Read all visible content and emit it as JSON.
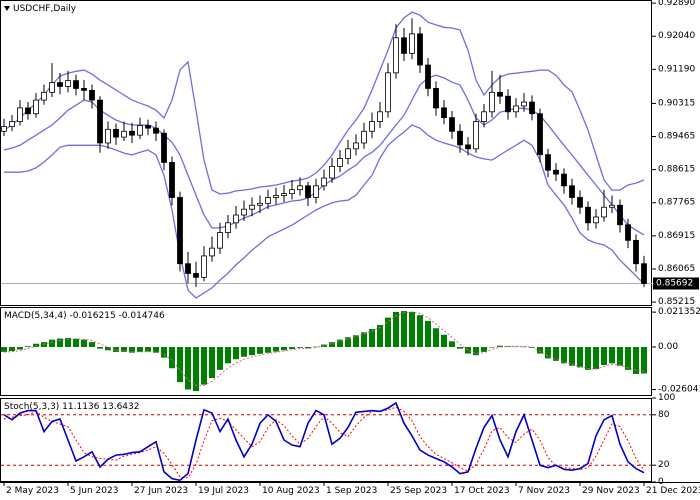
{
  "chart_data": [
    {
      "type": "candlestick",
      "title": "USDCHF,Daily",
      "categories": [
        "2 May 2023",
        null,
        null,
        null,
        null,
        null,
        null,
        null,
        "5 Jun 2023",
        null,
        null,
        null,
        null,
        null,
        null,
        null,
        "27 Jun 2023",
        null,
        null,
        null,
        null,
        null,
        null,
        null,
        "19 Jul 2023",
        null,
        null,
        null,
        null,
        null,
        null,
        null,
        "10 Aug 2023",
        null,
        null,
        null,
        null,
        null,
        null,
        null,
        "1 Sep 2023",
        null,
        null,
        null,
        null,
        null,
        null,
        null,
        "25 Sep 2023",
        null,
        null,
        null,
        null,
        null,
        null,
        null,
        "17 Oct 2023",
        null,
        null,
        null,
        null,
        null,
        null,
        null,
        "7 Nov 2023",
        null,
        null,
        null,
        null,
        null,
        null,
        null,
        "29 Nov 2023",
        null,
        null,
        null,
        null,
        null,
        null,
        null,
        "21 Dec 2023"
      ],
      "open": [
        0.896,
        0.8972,
        0.8985,
        0.902,
        0.9005,
        0.904,
        0.906,
        0.9085,
        0.9075,
        0.909,
        0.907,
        0.9065,
        0.904,
        0.893,
        0.8965,
        0.8945,
        0.896,
        0.895,
        0.8975,
        0.8968,
        0.8955,
        0.888,
        0.879,
        0.862,
        0.8595,
        0.8585,
        0.864,
        0.866,
        0.87,
        0.8725,
        0.8745,
        0.876,
        0.877,
        0.8775,
        0.879,
        0.8795,
        0.88,
        0.881,
        0.882,
        0.879,
        0.882,
        0.884,
        0.887,
        0.889,
        0.8915,
        0.893,
        0.896,
        0.8985,
        0.901,
        0.911,
        0.92,
        0.916,
        0.921,
        0.913,
        0.907,
        0.902,
        0.8995,
        0.896,
        0.8925,
        0.8915,
        0.8985,
        0.901,
        0.906,
        0.905,
        0.901,
        0.9025,
        0.9035,
        0.9005,
        0.89,
        0.886,
        0.885,
        0.882,
        0.879,
        0.8765,
        0.8725,
        0.874,
        0.8765,
        0.877,
        0.872,
        0.868,
        0.862
      ],
      "high": [
        0.8992,
        0.9002,
        0.904,
        0.9035,
        0.9058,
        0.908,
        0.9135,
        0.911,
        0.9115,
        0.9105,
        0.9092,
        0.908,
        0.905,
        0.8985,
        0.898,
        0.8985,
        0.8982,
        0.8995,
        0.899,
        0.8985,
        0.8965,
        0.8895,
        0.8805,
        0.865,
        0.8625,
        0.8665,
        0.869,
        0.8725,
        0.8745,
        0.8768,
        0.8782,
        0.879,
        0.8795,
        0.881,
        0.8815,
        0.8822,
        0.8835,
        0.8842,
        0.883,
        0.8838,
        0.8862,
        0.8892,
        0.8912,
        0.8938,
        0.8952,
        0.8982,
        0.9008,
        0.9035,
        0.9135,
        0.9235,
        0.9225,
        0.925,
        0.9228,
        0.9148,
        0.9088,
        0.904,
        0.9012,
        0.8978,
        0.8945,
        0.9005,
        0.903,
        0.9115,
        0.9105,
        0.9068,
        0.9045,
        0.9058,
        0.9052,
        0.9018,
        0.8915,
        0.8878,
        0.8865,
        0.8838,
        0.8808,
        0.878,
        0.876,
        0.881,
        0.8795,
        0.8785,
        0.8735,
        0.8695,
        0.864
      ],
      "low": [
        0.8948,
        0.896,
        0.8975,
        0.899,
        0.8995,
        0.9028,
        0.9048,
        0.9055,
        0.906,
        0.9052,
        0.904,
        0.9018,
        0.8905,
        0.8915,
        0.8925,
        0.8935,
        0.893,
        0.894,
        0.895,
        0.8935,
        0.886,
        0.877,
        0.86,
        0.857,
        0.856,
        0.8575,
        0.8625,
        0.8645,
        0.8685,
        0.871,
        0.873,
        0.8742,
        0.875,
        0.876,
        0.8772,
        0.8778,
        0.8785,
        0.8795,
        0.8768,
        0.8775,
        0.8808,
        0.8828,
        0.8855,
        0.8875,
        0.8898,
        0.8915,
        0.8942,
        0.8968,
        0.8995,
        0.9095,
        0.914,
        0.9145,
        0.911,
        0.905,
        0.9,
        0.8978,
        0.894,
        0.8905,
        0.8898,
        0.8905,
        0.897,
        0.8995,
        0.903,
        0.899,
        0.8995,
        0.901,
        0.8988,
        0.888,
        0.8842,
        0.8832,
        0.88,
        0.8772,
        0.8748,
        0.8705,
        0.871,
        0.8728,
        0.875,
        0.87,
        0.866,
        0.86,
        0.856
      ],
      "close": [
        0.8972,
        0.8985,
        0.902,
        0.9005,
        0.904,
        0.906,
        0.9085,
        0.9075,
        0.909,
        0.907,
        0.9065,
        0.904,
        0.893,
        0.8965,
        0.8945,
        0.896,
        0.895,
        0.8975,
        0.8968,
        0.8955,
        0.888,
        0.879,
        0.862,
        0.8595,
        0.8585,
        0.864,
        0.866,
        0.87,
        0.8725,
        0.8745,
        0.876,
        0.877,
        0.8775,
        0.879,
        0.8795,
        0.88,
        0.881,
        0.882,
        0.879,
        0.882,
        0.884,
        0.887,
        0.889,
        0.8915,
        0.893,
        0.896,
        0.8985,
        0.901,
        0.911,
        0.92,
        0.916,
        0.921,
        0.913,
        0.907,
        0.902,
        0.8995,
        0.896,
        0.8925,
        0.8915,
        0.8985,
        0.901,
        0.906,
        0.905,
        0.901,
        0.9025,
        0.9035,
        0.9005,
        0.89,
        0.886,
        0.885,
        0.882,
        0.879,
        0.8765,
        0.8725,
        0.874,
        0.8765,
        0.877,
        0.872,
        0.868,
        0.862,
        0.85692
      ],
      "up_color": "#ffffff",
      "down_color": "#000000",
      "bands": {
        "color": "#6e6ee0",
        "upper": [
          0.8963,
          0.8976,
          0.8994,
          0.9014,
          0.9032,
          0.9053,
          0.9079,
          0.9102,
          0.9109,
          0.9114,
          0.9117,
          0.9107,
          0.9091,
          0.9079,
          0.9066,
          0.9053,
          0.904,
          0.9032,
          0.9025,
          0.9014,
          0.8994,
          0.904,
          0.9117,
          0.9138,
          0.9014,
          0.8886,
          0.8809,
          0.8799,
          0.8801,
          0.8807,
          0.8809,
          0.8812,
          0.8817,
          0.8819,
          0.8822,
          0.8827,
          0.8832,
          0.8835,
          0.884,
          0.8853,
          0.8873,
          0.8899,
          0.8932,
          0.8963,
          0.8989,
          0.9019,
          0.9066,
          0.9117,
          0.9168,
          0.9225,
          0.9251,
          0.9266,
          0.9258,
          0.924,
          0.9233,
          0.9227,
          0.9225,
          0.922,
          0.9168,
          0.9091,
          0.9053,
          0.9079,
          0.9099,
          0.9107,
          0.9109,
          0.9112,
          0.9114,
          0.9117,
          0.9117,
          0.9104,
          0.9079,
          0.9061,
          0.9014,
          0.8963,
          0.8899,
          0.8835,
          0.8809,
          0.8809,
          0.8822,
          0.8827,
          0.8835
        ],
        "middle": [
          0.8912,
          0.8917,
          0.8924,
          0.8937,
          0.895,
          0.8963,
          0.8976,
          0.8994,
          0.9014,
          0.9027,
          0.904,
          0.9035,
          0.9014,
          0.9001,
          0.8989,
          0.8981,
          0.8976,
          0.8976,
          0.8976,
          0.8968,
          0.895,
          0.8932,
          0.8899,
          0.8847,
          0.8796,
          0.8745,
          0.8712,
          0.8712,
          0.8717,
          0.8727,
          0.8737,
          0.8745,
          0.8755,
          0.8766,
          0.8771,
          0.8776,
          0.8781,
          0.8783,
          0.8789,
          0.8804,
          0.8822,
          0.8835,
          0.8845,
          0.886,
          0.8873,
          0.8894,
          0.8906,
          0.8924,
          0.895,
          0.8976,
          0.9001,
          0.904,
          0.9079,
          0.9097,
          0.9104,
          0.9097,
          0.9086,
          0.9079,
          0.904,
          0.8994,
          0.8976,
          0.8989,
          0.9009,
          0.9014,
          0.9019,
          0.9019,
          0.9014,
          0.9001,
          0.8976,
          0.895,
          0.8924,
          0.8899,
          0.8873,
          0.8847,
          0.8822,
          0.8796,
          0.8771,
          0.8745,
          0.8719,
          0.8706,
          0.8694
        ],
        "lower": [
          0.8855,
          0.8855,
          0.8855,
          0.8858,
          0.8866,
          0.8881,
          0.8899,
          0.8919,
          0.8924,
          0.8924,
          0.8924,
          0.8924,
          0.8924,
          0.8919,
          0.8912,
          0.8904,
          0.8899,
          0.8906,
          0.8912,
          0.8899,
          0.8847,
          0.8758,
          0.8642,
          0.8552,
          0.8532,
          0.8545,
          0.8558,
          0.8578,
          0.8596,
          0.8617,
          0.8635,
          0.8655,
          0.8671,
          0.8689,
          0.8699,
          0.8709,
          0.8719,
          0.8732,
          0.8745,
          0.8758,
          0.8768,
          0.8776,
          0.8781,
          0.8783,
          0.8796,
          0.8822,
          0.8847,
          0.8891,
          0.8924,
          0.8942,
          0.8958,
          0.8976,
          0.8968,
          0.895,
          0.8937,
          0.893,
          0.8924,
          0.8917,
          0.8904,
          0.8894,
          0.8889,
          0.8886,
          0.8899,
          0.8912,
          0.8924,
          0.8937,
          0.8924,
          0.8886,
          0.8822,
          0.8796,
          0.8771,
          0.8737,
          0.8699,
          0.8681,
          0.8673,
          0.8668,
          0.8655,
          0.8629,
          0.8609,
          0.8589,
          0.8568
        ]
      },
      "ylim": [
        0.8514,
        0.9297
      ],
      "yticks": [
        {
          "value": 0.9289,
          "label": "0.92890"
        },
        {
          "value": 0.9204,
          "label": "0.92040"
        },
        {
          "value": 0.9119,
          "label": "0.91190"
        },
        0.90315,
        0.89465,
        0.88615,
        0.87765,
        0.86915,
        0.86065,
        0.85215
      ]
    },
    {
      "type": "macd",
      "title": "MACD(5,34,4) -0.016215 -0.014746",
      "color": "#008000",
      "signal_color": "#e0609a",
      "values": [
        -0.003,
        -0.0025,
        -0.0015,
        0.0005,
        0.002,
        0.003,
        0.0045,
        0.0052,
        0.0055,
        0.005,
        0.0045,
        0.003,
        -0.001,
        -0.002,
        -0.003,
        -0.003,
        -0.0035,
        -0.003,
        -0.0028,
        -0.0035,
        -0.0065,
        -0.013,
        -0.0215,
        -0.026,
        -0.027,
        -0.023,
        -0.019,
        -0.014,
        -0.01,
        -0.0075,
        -0.006,
        -0.005,
        -0.0042,
        -0.0035,
        -0.0028,
        -0.002,
        -0.0012,
        -0.0005,
        -0.0008,
        0.0002,
        0.0015,
        0.003,
        0.0045,
        0.006,
        0.0072,
        0.009,
        0.011,
        0.0135,
        0.018,
        0.0215,
        0.022,
        0.0215,
        0.0195,
        0.016,
        0.0115,
        0.0075,
        0.0035,
        -0.001,
        -0.004,
        -0.005,
        -0.003,
        0.0,
        0.0008,
        0.0005,
        0.0003,
        0.0002,
        -0.0005,
        -0.004,
        -0.007,
        -0.0085,
        -0.01,
        -0.0115,
        -0.0125,
        -0.014,
        -0.0135,
        -0.011,
        -0.01,
        -0.0115,
        -0.014,
        -0.0165,
        -0.016215
      ],
      "signal": [
        -0.0032,
        -0.0028,
        -0.0022,
        -0.001,
        0.0005,
        0.0018,
        0.003,
        0.004,
        0.0048,
        0.005,
        0.0048,
        0.004,
        0.0018,
        -0.0002,
        -0.0018,
        -0.0025,
        -0.003,
        -0.003,
        -0.0029,
        -0.0031,
        -0.0045,
        -0.008,
        -0.014,
        -0.02,
        -0.0235,
        -0.0235,
        -0.021,
        -0.017,
        -0.013,
        -0.0098,
        -0.0075,
        -0.006,
        -0.005,
        -0.004,
        -0.0032,
        -0.0025,
        -0.0017,
        -0.0009,
        -0.0008,
        -0.0003,
        0.0008,
        0.0022,
        0.0037,
        0.0052,
        0.0065,
        0.008,
        0.0098,
        0.012,
        0.0155,
        0.019,
        0.021,
        0.0215,
        0.0205,
        0.018,
        0.014,
        0.01,
        0.006,
        0.0018,
        -0.002,
        -0.004,
        -0.0035,
        -0.0015,
        0.0,
        0.0004,
        0.0004,
        0.0003,
        -0.0001,
        -0.0025,
        -0.0055,
        -0.0075,
        -0.0092,
        -0.0108,
        -0.012,
        -0.0132,
        -0.0135,
        -0.012,
        -0.0106,
        -0.011,
        -0.0128,
        -0.014,
        -0.014746
      ],
      "ylim": [
        -0.03,
        0.0245
      ],
      "yticks": [
        0.021352,
        {
          "value": 0,
          "label": "0.00"
        },
        -0.026041
      ]
    },
    {
      "type": "stochastic",
      "title": "Stoch(5,3,3) 11.1136 13.6432",
      "color": "#0000c8",
      "signal_color": "#ff0000",
      "levels_color": "#c00000",
      "values": [
        80,
        74,
        82,
        85,
        85,
        60,
        72,
        75,
        50,
        25,
        30,
        36,
        18,
        27,
        32,
        33,
        35,
        36,
        42,
        48,
        12,
        4,
        2,
        10,
        50,
        86,
        82,
        60,
        75,
        50,
        30,
        45,
        70,
        80,
        72,
        50,
        44,
        42,
        70,
        85,
        80,
        45,
        52,
        65,
        83,
        84,
        85,
        84,
        88,
        94,
        70,
        55,
        38,
        32,
        28,
        24,
        18,
        10,
        12,
        40,
        65,
        79,
        50,
        30,
        60,
        80,
        50,
        20,
        17,
        20,
        15,
        14,
        16,
        22,
        55,
        74,
        79,
        45,
        24,
        16,
        11.1136
      ],
      "signal": [
        75,
        77,
        79,
        80,
        84,
        77,
        72,
        69,
        66,
        50,
        35,
        30,
        28,
        27,
        26,
        31,
        33,
        35,
        38,
        42,
        34,
        21,
        6,
        5,
        21,
        49,
        73,
        76,
        72,
        62,
        52,
        42,
        48,
        65,
        74,
        67,
        55,
        45,
        52,
        66,
        78,
        70,
        59,
        54,
        67,
        77,
        84,
        84,
        86,
        89,
        84,
        73,
        54,
        42,
        33,
        28,
        23,
        17,
        13,
        21,
        39,
        61,
        65,
        53,
        47,
        57,
        63,
        50,
        29,
        19,
        17,
        16,
        15,
        17,
        31,
        50,
        69,
        66,
        49,
        28,
        13.6432
      ],
      "levels": [
        20,
        80
      ],
      "ylim": [
        0,
        100
      ],
      "yticks": [
        0,
        20,
        80,
        100
      ]
    }
  ]
}
